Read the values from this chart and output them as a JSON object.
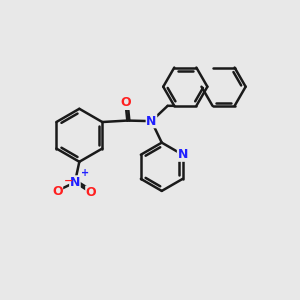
{
  "background_color": "#e8e8e8",
  "bond_color": "#1a1a1a",
  "bond_width": 1.8,
  "atom_colors": {
    "N": "#2020ff",
    "O": "#ff2020",
    "C": "#1a1a1a"
  }
}
